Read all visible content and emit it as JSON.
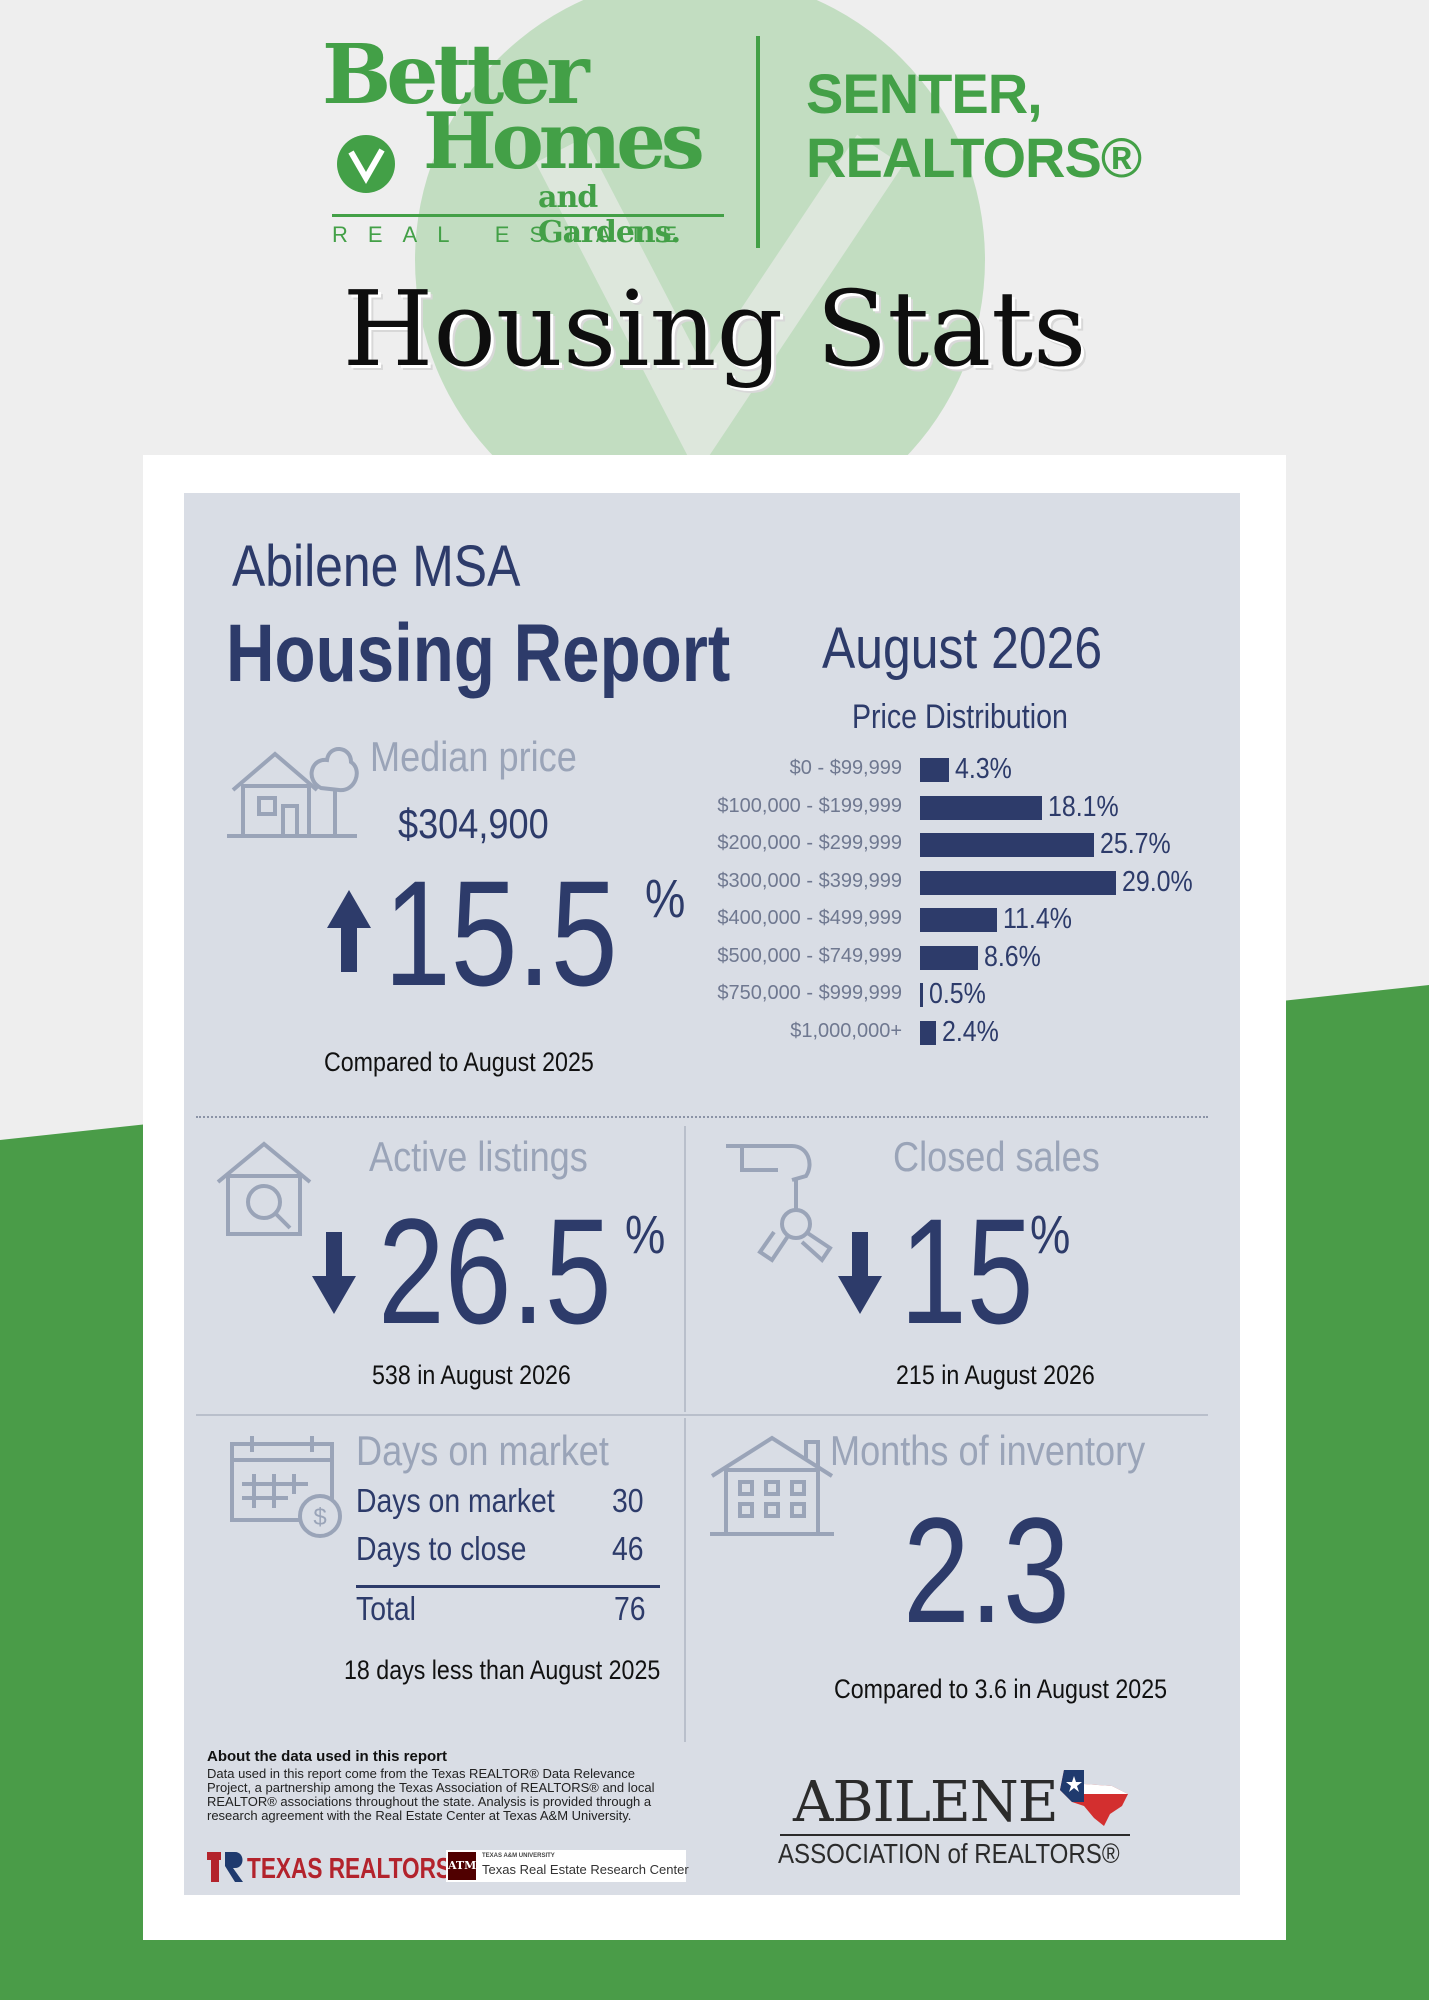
{
  "header": {
    "brand_line1": "Better",
    "brand_line2": "Homes",
    "brand_line3": "and Gardens.",
    "brand_sub": "REAL ESTATE",
    "office_line1": "SENTER,",
    "office_line2": "REALTORS®",
    "page_title": "Housing Stats"
  },
  "report": {
    "region": "Abilene MSA",
    "title": "Housing Report",
    "month": "August 2026"
  },
  "median_price": {
    "title": "Median price",
    "value": "$304,900",
    "change": "15.5",
    "pct_sign": "%",
    "direction": "up",
    "caption": "Compared to August 2025"
  },
  "price_distribution": {
    "title": "Price Distribution",
    "rows": [
      {
        "label": "$0 - $99,999",
        "value": 4.3,
        "display": "4.3%"
      },
      {
        "label": "$100,000 - $199,999",
        "value": 18.1,
        "display": "18.1%"
      },
      {
        "label": "$200,000 - $299,999",
        "value": 25.7,
        "display": "25.7%"
      },
      {
        "label": "$300,000 - $399,999",
        "value": 29.0,
        "display": "29.0%"
      },
      {
        "label": "$400,000 - $499,999",
        "value": 11.4,
        "display": "11.4%"
      },
      {
        "label": "$500,000 - $749,999",
        "value": 8.6,
        "display": "8.6%"
      },
      {
        "label": "$750,000 - $999,999",
        "value": 0.5,
        "display": "0.5%"
      },
      {
        "label": "$1,000,000+",
        "value": 2.4,
        "display": "2.4%"
      }
    ]
  },
  "active_listings": {
    "title": "Active listings",
    "change": "26.5",
    "pct_sign": "%",
    "direction": "down",
    "caption": "538 in August 2026"
  },
  "closed_sales": {
    "title": "Closed sales",
    "change": "15",
    "pct_sign": "%",
    "direction": "down",
    "caption": "215 in August 2026"
  },
  "days_on_market": {
    "title": "Days on market",
    "rows": [
      {
        "label": "Days on market",
        "value": "30"
      },
      {
        "label": "Days to close",
        "value": "46"
      }
    ],
    "total_label": "Total",
    "total_value": "76",
    "caption": "18 days less than August 2025"
  },
  "months_inventory": {
    "title": "Months of inventory",
    "value": "2.3",
    "caption": "Compared to 3.6 in August 2025"
  },
  "footer": {
    "about_title": "About the data used in this report",
    "about_text": "Data used in this report come from the Texas REALTOR® Data Relevance Project, a partnership among the Texas Association of REALTORS® and local REALTOR® associations throughout the state. Analysis is provided through a research agreement with the Real Estate Center at Texas A&M University.",
    "texas_realtors": "TEXAS REALTORS",
    "tamu_small": "TEXAS A&M UNIVERSITY",
    "tamu_name": "Texas Real Estate Research Center",
    "aar_line1": "ABILENE",
    "aar_line2": "ASSOCIATION of REALTORS®"
  },
  "colors": {
    "brand_green": "#43a047",
    "navy": "#2d3b6a",
    "panel": "#d9dde5",
    "muted": "#9aa4b8"
  }
}
